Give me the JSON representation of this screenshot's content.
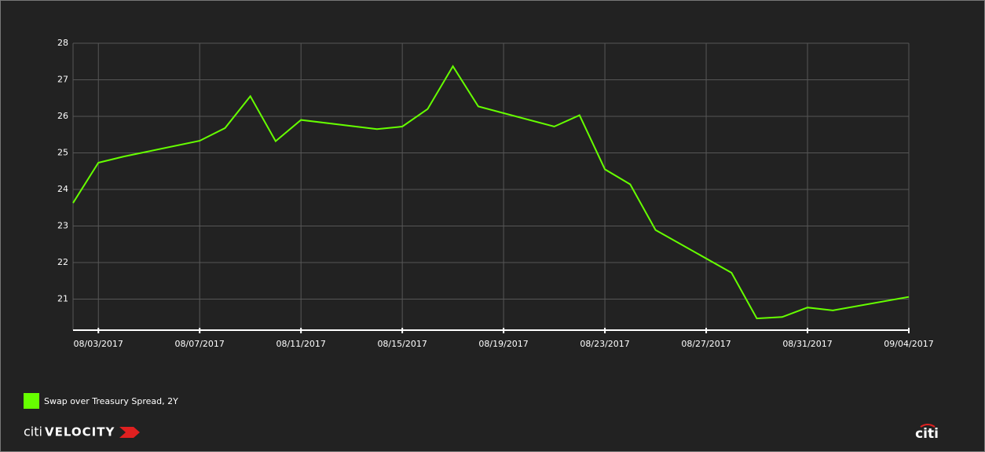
{
  "chart_data": {
    "type": "line",
    "x": [
      "08/02/2017",
      "08/03/2017",
      "08/04/2017",
      "08/07/2017",
      "08/08/2017",
      "08/09/2017",
      "08/10/2017",
      "08/11/2017",
      "08/14/2017",
      "08/15/2017",
      "08/16/2017",
      "08/17/2017",
      "08/18/2017",
      "08/21/2017",
      "08/22/2017",
      "08/23/2017",
      "08/24/2017",
      "08/25/2017",
      "08/28/2017",
      "08/29/2017",
      "08/30/2017",
      "08/31/2017",
      "09/01/2017",
      "09/04/2017"
    ],
    "series": [
      {
        "name": "Swap over Treasury Spread, 2Y",
        "color": "#66ff00",
        "values": [
          23.63,
          24.73,
          24.9,
          25.33,
          25.68,
          26.55,
          25.32,
          25.9,
          25.65,
          25.72,
          26.2,
          27.37,
          26.27,
          25.72,
          26.03,
          24.55,
          24.14,
          22.89,
          21.72,
          20.47,
          20.51,
          20.77,
          20.69,
          21.06
        ]
      }
    ],
    "xlim": [
      "08/02/2017",
      "09/04/2017"
    ],
    "xticks": [
      "08/03/2017",
      "08/07/2017",
      "08/11/2017",
      "08/15/2017",
      "08/19/2017",
      "08/23/2017",
      "08/27/2017",
      "08/31/2017",
      "09/04/2017"
    ],
    "ylim": [
      20.15,
      28
    ],
    "yticks": [
      21,
      22,
      23,
      24,
      25,
      26,
      27,
      28
    ],
    "grid": true
  },
  "branding": {
    "product_prefix": "citi",
    "product": "VELOCITY",
    "logo": "citi"
  }
}
